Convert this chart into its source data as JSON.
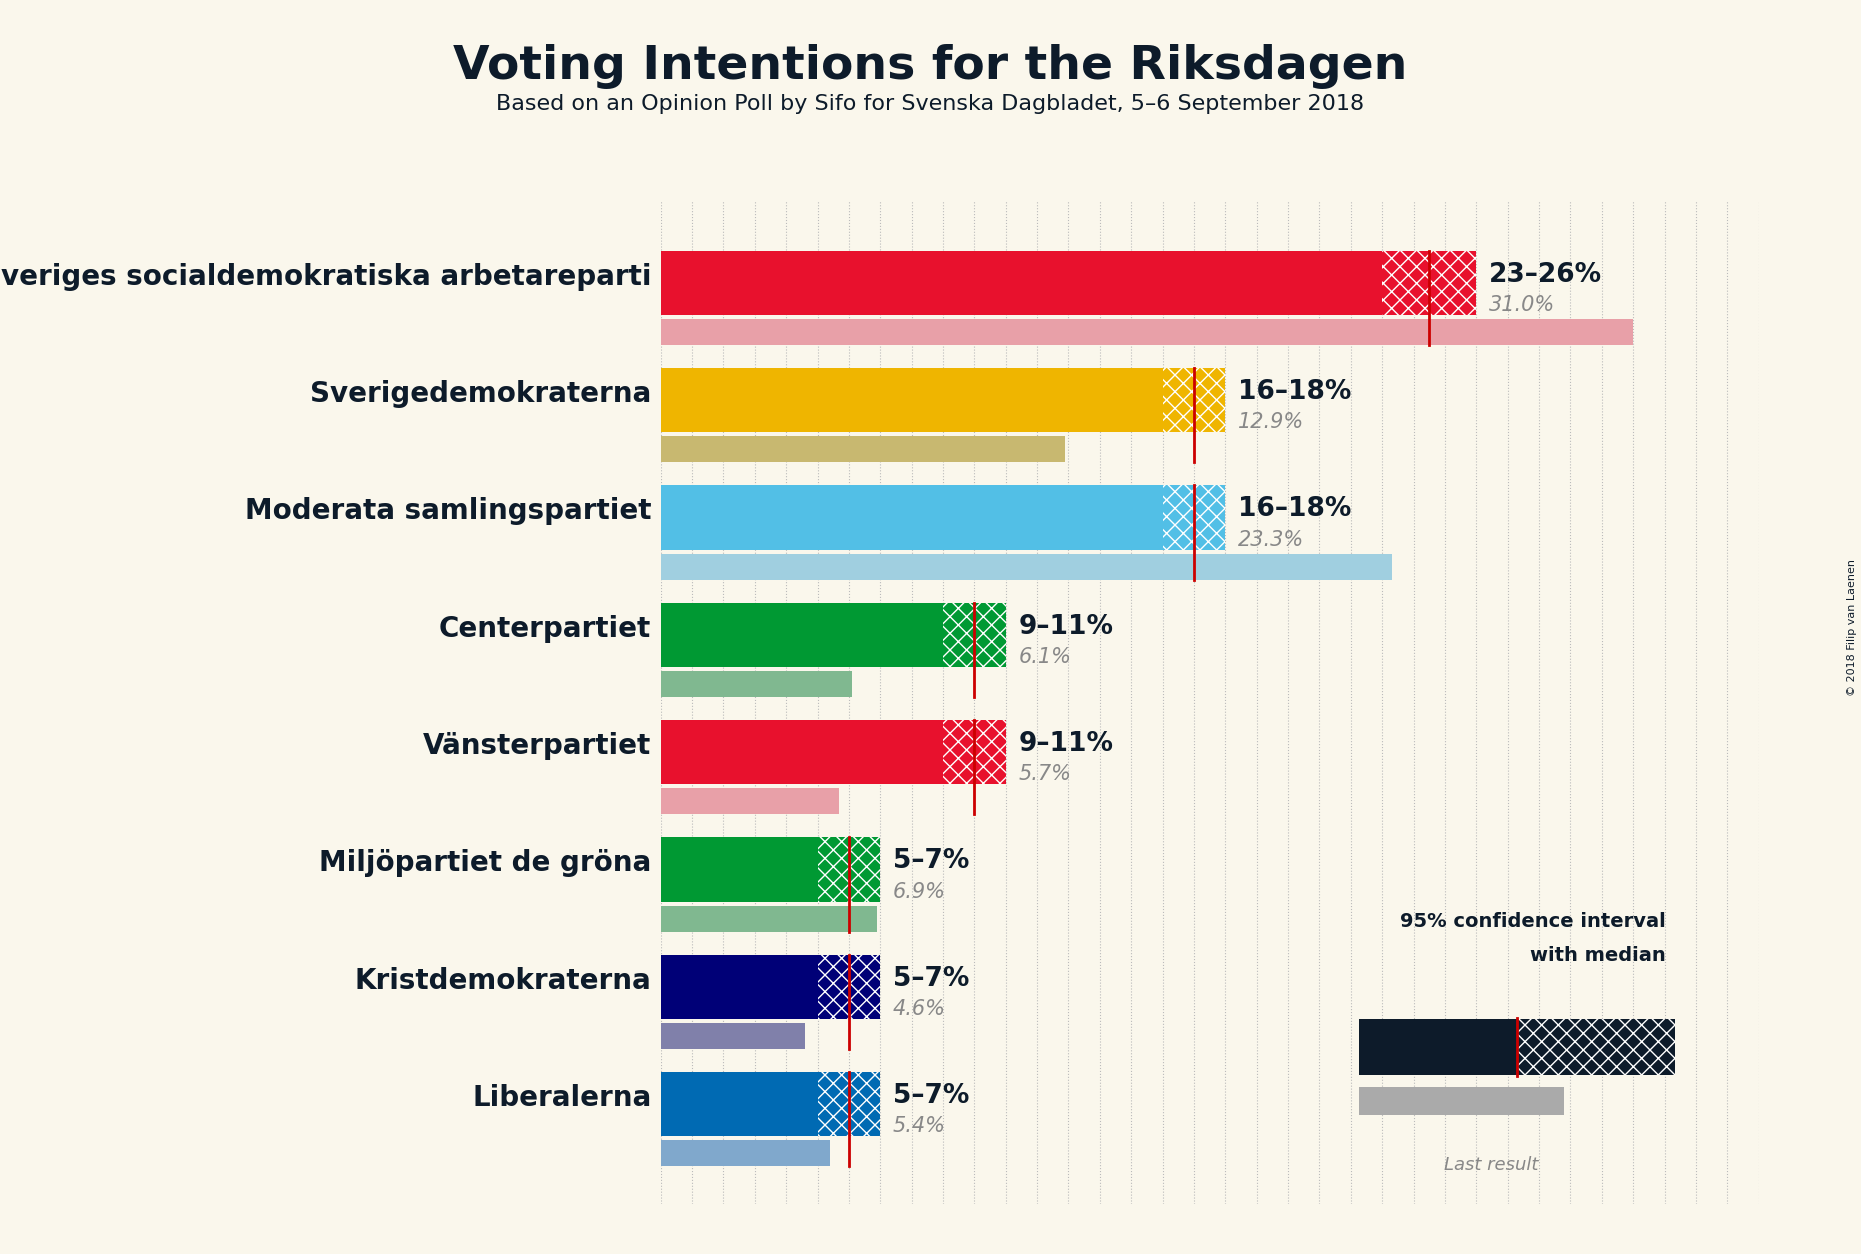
{
  "title": "Voting Intentions for the Riksdagen",
  "subtitle": "Based on an Opinion Poll by Sifo for Svenska Dagbladet, 5–6 September 2018",
  "copyright": "© 2018 Filip van Laenen",
  "background_color": "#faf7ec",
  "parties": [
    {
      "name": "Sveriges socialdemokratiska arbetareparti",
      "color": "#E8112d",
      "last_color": "#e8a0a8",
      "ci_low": 23,
      "ci_high": 26,
      "median": 24.5,
      "last_result": 31.0,
      "label": "23–26%",
      "last_label": "31.0%"
    },
    {
      "name": "Sverigedemokraterna",
      "color": "#EFB500",
      "last_color": "#c8b870",
      "ci_low": 16,
      "ci_high": 18,
      "median": 17.0,
      "last_result": 12.9,
      "label": "16–18%",
      "last_label": "12.9%"
    },
    {
      "name": "Moderata samlingspartiet",
      "color": "#52BFE6",
      "last_color": "#a0cfe0",
      "ci_low": 16,
      "ci_high": 18,
      "median": 17.0,
      "last_result": 23.3,
      "label": "16–18%",
      "last_label": "23.3%"
    },
    {
      "name": "Centerpartiet",
      "color": "#009933",
      "last_color": "#80b890",
      "ci_low": 9,
      "ci_high": 11,
      "median": 10.0,
      "last_result": 6.1,
      "label": "9–11%",
      "last_label": "6.1%"
    },
    {
      "name": "Vänsterpartiet",
      "color": "#E8112d",
      "last_color": "#e8a0a8",
      "ci_low": 9,
      "ci_high": 11,
      "median": 10.0,
      "last_result": 5.7,
      "label": "9–11%",
      "last_label": "5.7%"
    },
    {
      "name": "Miljöpartiet de gröna",
      "color": "#009933",
      "last_color": "#80b890",
      "ci_low": 5,
      "ci_high": 7,
      "median": 6.0,
      "last_result": 6.9,
      "label": "5–7%",
      "last_label": "6.9%"
    },
    {
      "name": "Kristdemokraterna",
      "color": "#000077",
      "last_color": "#8080aa",
      "ci_low": 5,
      "ci_high": 7,
      "median": 6.0,
      "last_result": 4.6,
      "label": "5–7%",
      "last_label": "4.6%"
    },
    {
      "name": "Liberalerna",
      "color": "#006AB3",
      "last_color": "#80a8cc",
      "ci_low": 5,
      "ci_high": 7,
      "median": 6.0,
      "last_result": 5.4,
      "label": "5–7%",
      "last_label": "5.4%"
    }
  ],
  "xmax": 35,
  "text_color": "#0d1b2a",
  "last_result_color": "#888888",
  "label_fontsize": 19,
  "last_label_fontsize": 15,
  "party_fontsize": 20,
  "title_fontsize": 34,
  "subtitle_fontsize": 16,
  "main_bar_height": 0.55,
  "last_bar_height": 0.22,
  "grid_color": "#bbbbbb",
  "median_line_color": "#cc0000",
  "legend_box_color": "#0d1b2a",
  "legend_last_color": "#aaaaaa"
}
